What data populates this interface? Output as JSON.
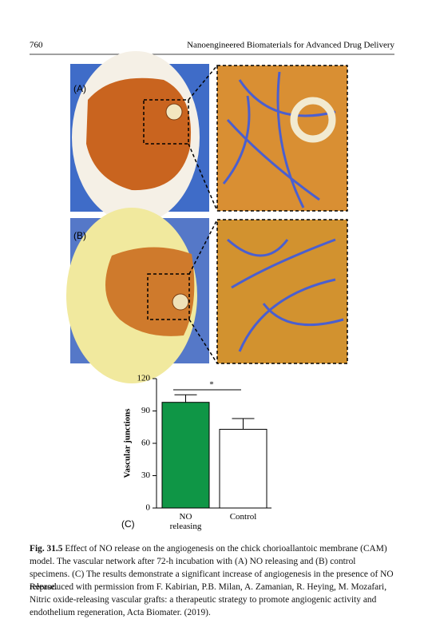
{
  "header": {
    "page_number": "760",
    "running_title": "Nanoengineered Biomaterials for Advanced Drug Delivery"
  },
  "panels": {
    "a_label": "(A)",
    "b_label": "(B)",
    "c_label": "(C)"
  },
  "chart_data": {
    "type": "bar",
    "y_label": "Vascular junctions",
    "categories": [
      "NO releasing",
      "Control"
    ],
    "values": [
      98,
      73
    ],
    "errors": [
      7,
      10
    ],
    "colors": [
      "#0f9646",
      "#ffffff"
    ],
    "ylim": [
      0,
      120
    ],
    "yticks": [
      0,
      30,
      60,
      90,
      120
    ],
    "annotation": "*"
  },
  "caption": {
    "figure_label": "Fig. 31.5",
    "text": "Effect of NO release on the angiogenesis on the chick chorioallantoic membrane (CAM) model. The vascular network after 72-h incubation with (A) NO releasing and (B) control specimens. (C) The results demonstrate a significant increase of angiogenesis in the presence of NO release.",
    "credit": "Reproduced with permission from F. Kabirian, P.B. Milan, A. Zamanian, R. Heying, M. Mozafari, Nitric oxide-releasing vascular grafts: a therapeutic strategy to promote angiogenic activity and endothelium regeneration, Acta Biomater. (2019)."
  }
}
